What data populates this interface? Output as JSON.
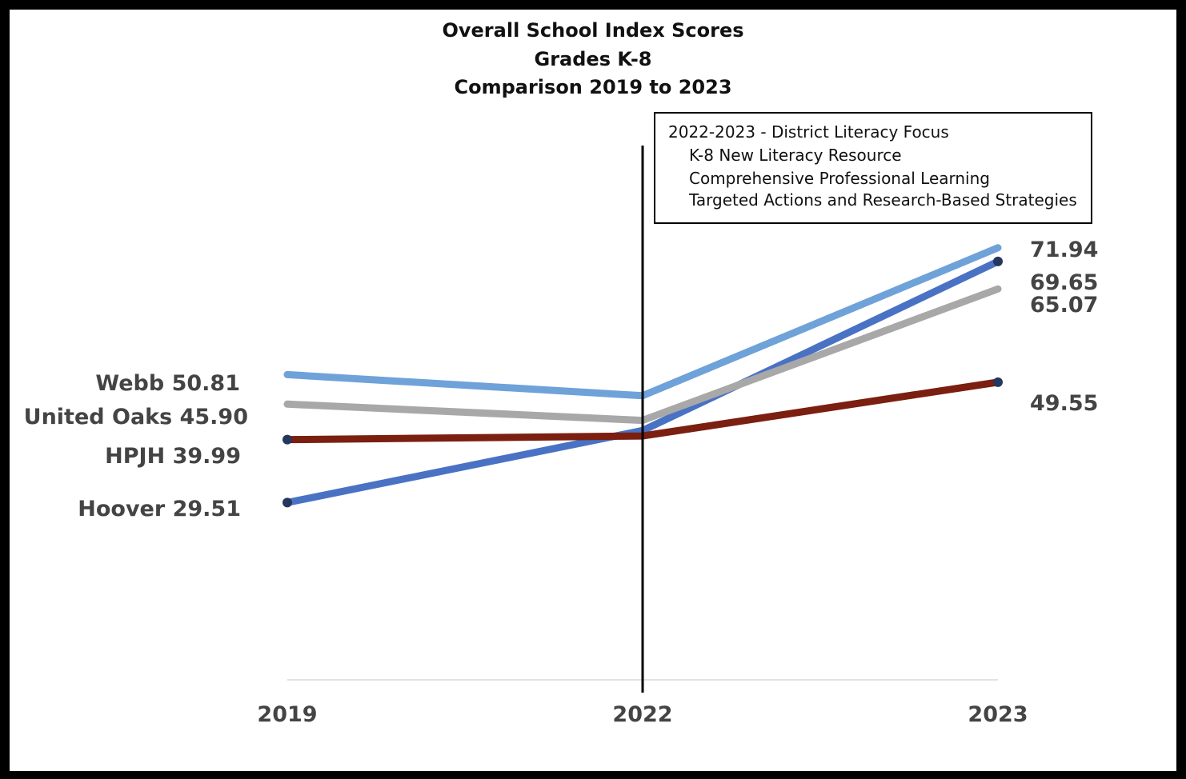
{
  "chart_data": {
    "type": "line",
    "title": [
      "Overall School Index Scores",
      "Grades K-8",
      "Comparison 2019 to 2023"
    ],
    "categories": [
      "2019",
      "2022",
      "2023"
    ],
    "ylim": [
      0,
      80
    ],
    "grid": false,
    "series": [
      {
        "name": "Webb",
        "values": [
          50.81,
          47.3,
          71.94
        ],
        "color": "#6fa2d8",
        "start_label": "Webb 50.81",
        "end_label": "71.94"
      },
      {
        "name": "United Oaks",
        "values": [
          45.9,
          43.2,
          65.07
        ],
        "color": "#a8a8a8",
        "start_label": "United Oaks 45.90",
        "end_label": "65.07"
      },
      {
        "name": "HPJH",
        "values": [
          39.99,
          40.6,
          49.55
        ],
        "color": "#7b1f10",
        "start_label": "HPJH 39.99",
        "end_label": "49.55"
      },
      {
        "name": "Hoover",
        "values": [
          29.51,
          41.5,
          69.65
        ],
        "color": "#4a72c4",
        "start_label": "Hoover 29.51",
        "end_label": "69.65"
      }
    ],
    "annotation": {
      "heading": "2022-2023 - District Literacy Focus",
      "items": [
        "K-8 New Literacy Resource",
        "Comprehensive Professional Learning",
        "Targeted Actions and Research-Based Strategies"
      ]
    },
    "marker_category": "2022"
  }
}
